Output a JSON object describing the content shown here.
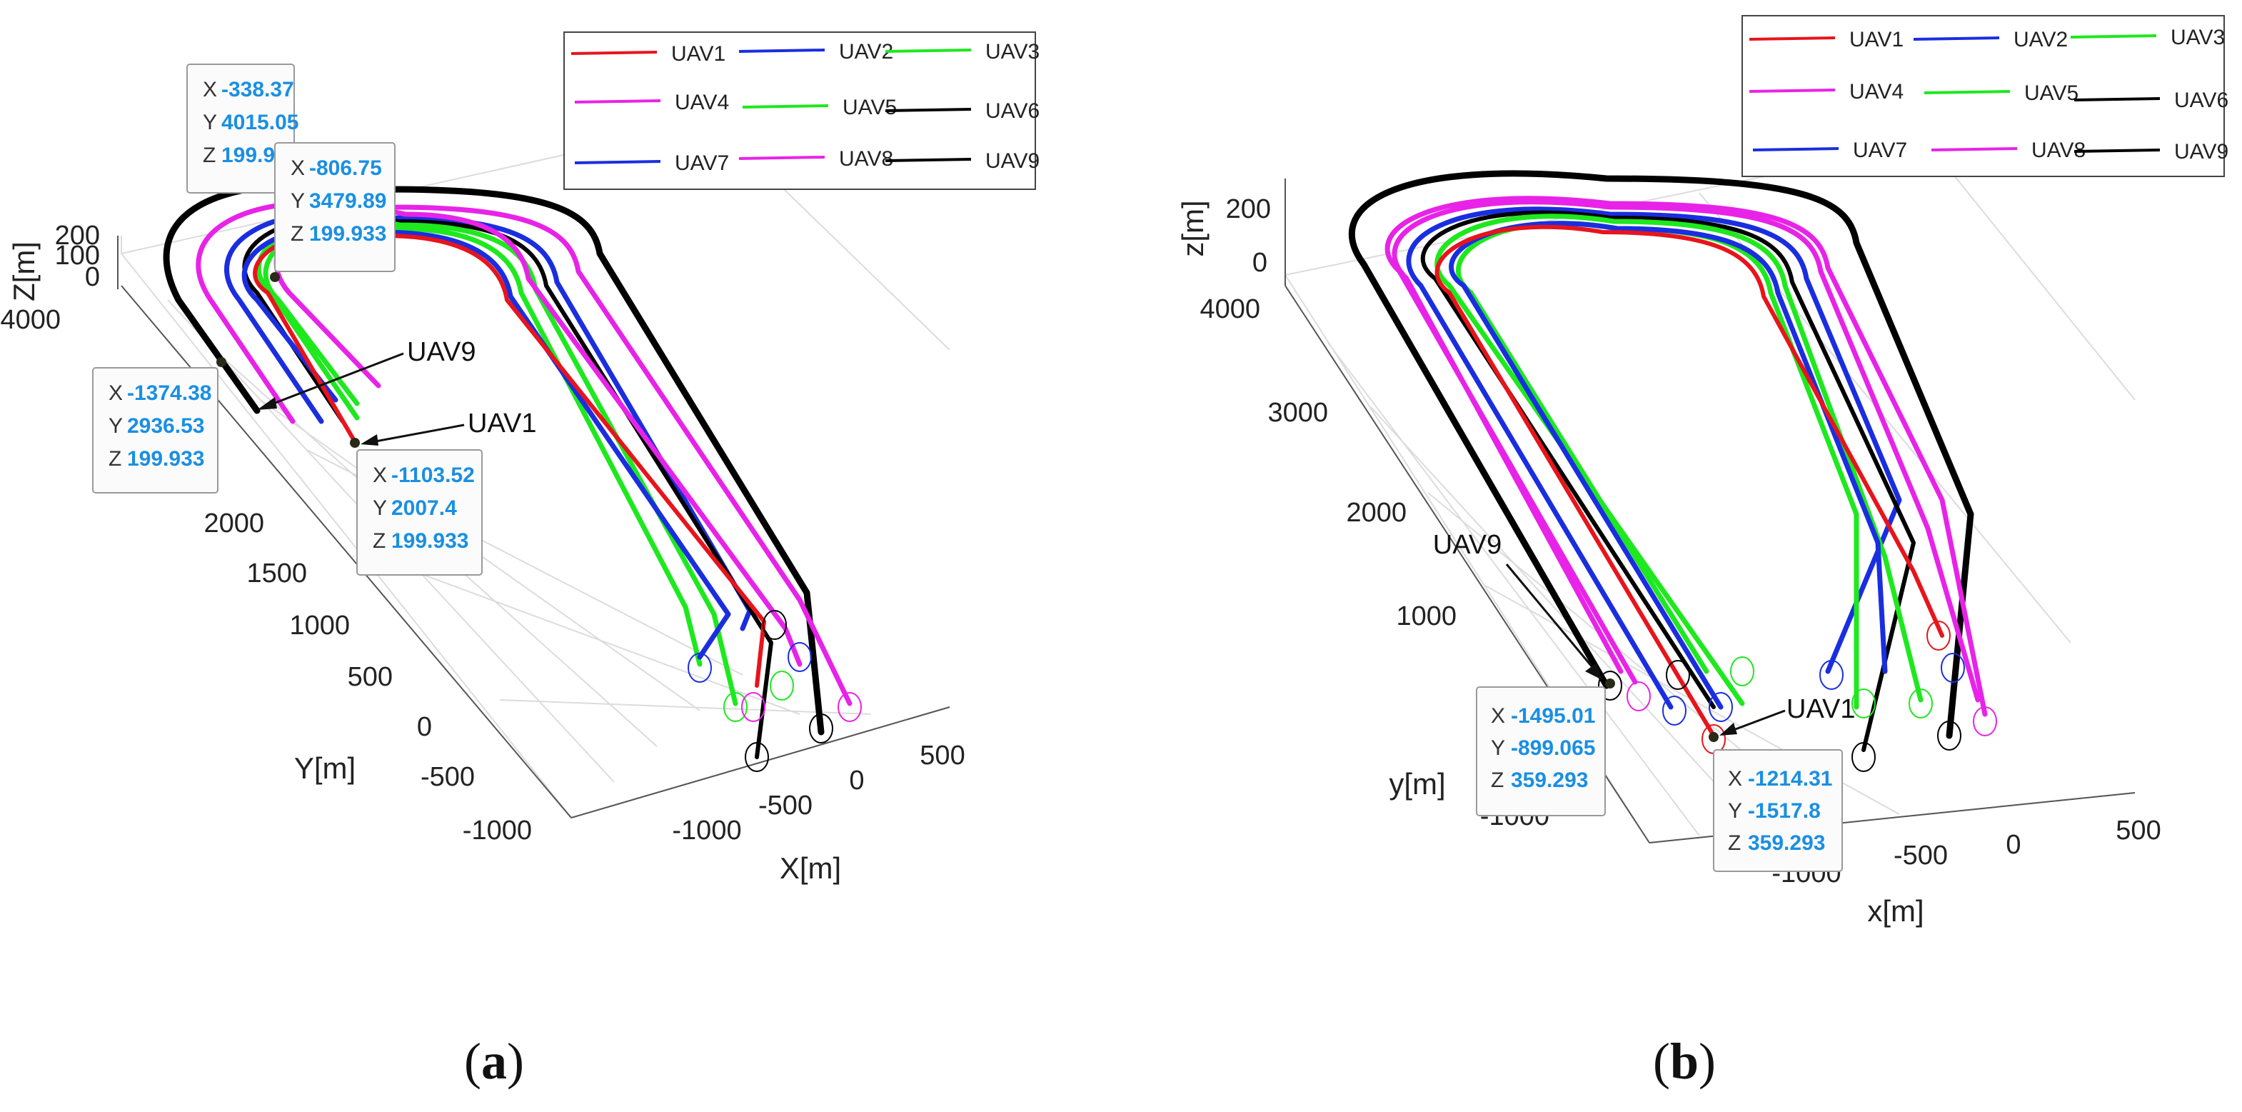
{
  "chart_data": [
    {
      "panel": "(a)",
      "type": "line",
      "title": "",
      "xlabel": "X[m]",
      "ylabel": "Y[m]",
      "zlabel": "Z[m]",
      "x_ticks": [
        "-1000",
        "-500",
        "0",
        "500"
      ],
      "y_ticks": [
        "-1000",
        "-500",
        "0",
        "500",
        "1000",
        "1500",
        "2000",
        "4000"
      ],
      "z_ticks": [
        "200",
        "100",
        "0"
      ],
      "grid": true,
      "legend_placement": "top-right",
      "legend": [
        "UAV1",
        "UAV2",
        "UAV3",
        "UAV4",
        "UAV5",
        "UAV6",
        "UAV7",
        "UAV8",
        "UAV9"
      ],
      "series_colors": {
        "UAV1": "#e8141c",
        "UAV2": "#1a2ee0",
        "UAV3": "#1ee81e",
        "UAV4": "#e823e8",
        "UAV5": "#1ee81e",
        "UAV6": "#000000",
        "UAV7": "#1a2ee0",
        "UAV8": "#e823e8",
        "UAV9": "#000000"
      },
      "annotations": [
        "UAV9",
        "UAV1"
      ],
      "datatips": [
        {
          "X": "-338.37",
          "Y": "4015.05",
          "Z": "199.93"
        },
        {
          "X": "-806.75",
          "Y": "3479.89",
          "Z": "199.933"
        },
        {
          "X": "-1374.38",
          "Y": "2936.53",
          "Z": "199.933"
        },
        {
          "X": "-1103.52",
          "Y": "2007.4",
          "Z": "199.933"
        }
      ]
    },
    {
      "panel": "(b)",
      "type": "line",
      "title": "",
      "xlabel": "x[m]",
      "ylabel": "y[m]",
      "zlabel": "z[m]",
      "x_ticks": [
        "-1000",
        "-500",
        "0",
        "500"
      ],
      "y_ticks": [
        "-1000",
        "1000",
        "2000",
        "3000",
        "4000"
      ],
      "z_ticks": [
        "200",
        "0"
      ],
      "grid": true,
      "legend_placement": "top-right",
      "legend": [
        "UAV1",
        "UAV2",
        "UAV3",
        "UAV4",
        "UAV5",
        "UAV6",
        "UAV7",
        "UAV8",
        "UAV9"
      ],
      "series_colors": {
        "UAV1": "#e8141c",
        "UAV2": "#1a2ee0",
        "UAV3": "#1ee81e",
        "UAV4": "#e823e8",
        "UAV5": "#1ee81e",
        "UAV6": "#000000",
        "UAV7": "#1a2ee0",
        "UAV8": "#e823e8",
        "UAV9": "#000000"
      },
      "annotations": [
        "UAV9",
        "UAV1"
      ],
      "datatips": [
        {
          "X": "-1495.01",
          "Y": "-899.065",
          "Z": "359.293"
        },
        {
          "X": "-1214.31",
          "Y": "-1517.8",
          "Z": "359.293"
        }
      ]
    }
  ],
  "panel_labels": {
    "a": "a",
    "b": "b"
  }
}
